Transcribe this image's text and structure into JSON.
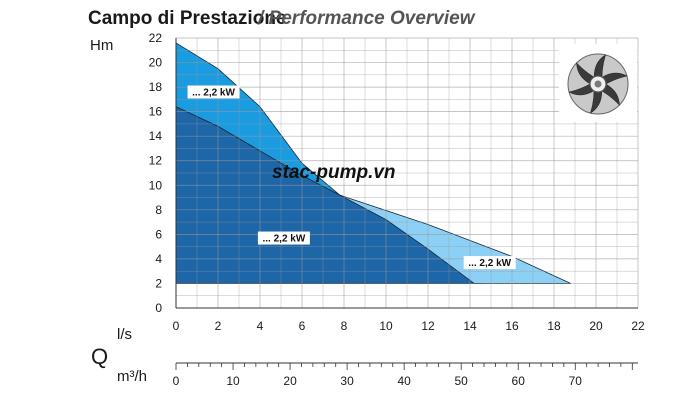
{
  "chart_data": {
    "type": "area",
    "title": "Campo di Prestazione",
    "subtitle": "Performance Overview",
    "ylabel": "Hm",
    "xlabel": "l/s",
    "secondary_axis_label": "Q",
    "secondary_xlabel": "m³/h",
    "xlim": [
      0,
      22
    ],
    "ylim": [
      0,
      22
    ],
    "x2lim": [
      0,
      81
    ],
    "grid": true,
    "x_ticks": [
      "0",
      "2",
      "4",
      "6",
      "8",
      "10",
      "12",
      "14",
      "16",
      "18",
      "20",
      "22"
    ],
    "y_ticks": [
      "0",
      "2",
      "4",
      "6",
      "8",
      "10",
      "12",
      "14",
      "16",
      "18",
      "20",
      "22"
    ],
    "x2_ticks": [
      "0",
      "10",
      "20",
      "30",
      "40",
      "50",
      "60",
      "70"
    ],
    "series": [
      {
        "label": "... 2,2 kW",
        "color": "#1b9ce0",
        "x": [
          0,
          2,
          4,
          6,
          7.8,
          14.5
        ],
        "y": [
          21.6,
          19.5,
          16.4,
          11.8,
          9.2,
          2
        ]
      },
      {
        "label": "... 2,2 kW",
        "color": "#8dd0f5",
        "x": [
          0,
          2,
          4,
          6,
          7.8,
          12,
          16,
          18.8
        ],
        "y": [
          16.4,
          14.8,
          12.8,
          10.8,
          9.2,
          6.8,
          4.2,
          2
        ]
      },
      {
        "label": "... 2,2 kW",
        "color": "#1d66a8",
        "x": [
          0,
          2,
          4,
          6,
          7.8,
          10,
          12,
          14.2
        ],
        "y": [
          16.4,
          14.8,
          12.8,
          10.8,
          9.2,
          7.2,
          4.8,
          2
        ]
      }
    ],
    "watermark": "stac-pump.vn",
    "icon": "impeller-icon"
  }
}
